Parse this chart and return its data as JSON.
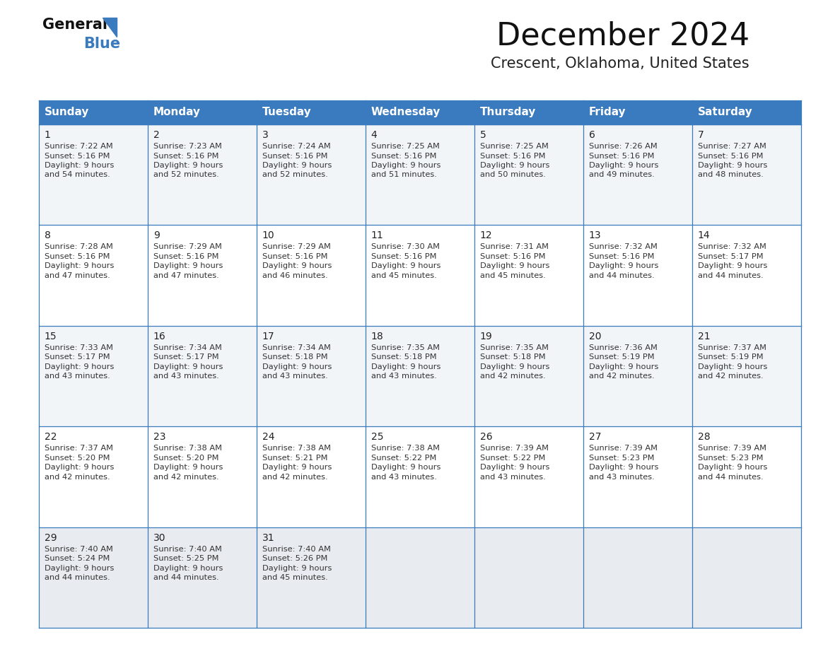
{
  "title": "December 2024",
  "subtitle": "Crescent, Oklahoma, United States",
  "header_bg_color": "#3a7abf",
  "header_text_color": "#ffffff",
  "day_names": [
    "Sunday",
    "Monday",
    "Tuesday",
    "Wednesday",
    "Thursday",
    "Friday",
    "Saturday"
  ],
  "bg_color": "#ffffff",
  "cell_bg_row0": "#f2f5f8",
  "cell_bg_row1": "#ffffff",
  "cell_bg_row2": "#f2f5f8",
  "cell_bg_row3": "#ffffff",
  "cell_bg_row4": "#e8ecf0",
  "grid_color": "#3a7abf",
  "day_number_color": "#222222",
  "cell_text_color": "#333333",
  "title_fontsize": 32,
  "subtitle_fontsize": 15,
  "header_fontsize": 11,
  "day_num_fontsize": 10,
  "cell_fontsize": 8.2,
  "days": [
    {
      "day": 1,
      "col": 0,
      "row": 0,
      "sunrise": "7:22 AM",
      "sunset": "5:16 PM",
      "daylight": "9 hours and 54 minutes."
    },
    {
      "day": 2,
      "col": 1,
      "row": 0,
      "sunrise": "7:23 AM",
      "sunset": "5:16 PM",
      "daylight": "9 hours and 52 minutes."
    },
    {
      "day": 3,
      "col": 2,
      "row": 0,
      "sunrise": "7:24 AM",
      "sunset": "5:16 PM",
      "daylight": "9 hours and 52 minutes."
    },
    {
      "day": 4,
      "col": 3,
      "row": 0,
      "sunrise": "7:25 AM",
      "sunset": "5:16 PM",
      "daylight": "9 hours and 51 minutes."
    },
    {
      "day": 5,
      "col": 4,
      "row": 0,
      "sunrise": "7:25 AM",
      "sunset": "5:16 PM",
      "daylight": "9 hours and 50 minutes."
    },
    {
      "day": 6,
      "col": 5,
      "row": 0,
      "sunrise": "7:26 AM",
      "sunset": "5:16 PM",
      "daylight": "9 hours and 49 minutes."
    },
    {
      "day": 7,
      "col": 6,
      "row": 0,
      "sunrise": "7:27 AM",
      "sunset": "5:16 PM",
      "daylight": "9 hours and 48 minutes."
    },
    {
      "day": 8,
      "col": 0,
      "row": 1,
      "sunrise": "7:28 AM",
      "sunset": "5:16 PM",
      "daylight": "9 hours and 47 minutes."
    },
    {
      "day": 9,
      "col": 1,
      "row": 1,
      "sunrise": "7:29 AM",
      "sunset": "5:16 PM",
      "daylight": "9 hours and 47 minutes."
    },
    {
      "day": 10,
      "col": 2,
      "row": 1,
      "sunrise": "7:29 AM",
      "sunset": "5:16 PM",
      "daylight": "9 hours and 46 minutes."
    },
    {
      "day": 11,
      "col": 3,
      "row": 1,
      "sunrise": "7:30 AM",
      "sunset": "5:16 PM",
      "daylight": "9 hours and 45 minutes."
    },
    {
      "day": 12,
      "col": 4,
      "row": 1,
      "sunrise": "7:31 AM",
      "sunset": "5:16 PM",
      "daylight": "9 hours and 45 minutes."
    },
    {
      "day": 13,
      "col": 5,
      "row": 1,
      "sunrise": "7:32 AM",
      "sunset": "5:16 PM",
      "daylight": "9 hours and 44 minutes."
    },
    {
      "day": 14,
      "col": 6,
      "row": 1,
      "sunrise": "7:32 AM",
      "sunset": "5:17 PM",
      "daylight": "9 hours and 44 minutes."
    },
    {
      "day": 15,
      "col": 0,
      "row": 2,
      "sunrise": "7:33 AM",
      "sunset": "5:17 PM",
      "daylight": "9 hours and 43 minutes."
    },
    {
      "day": 16,
      "col": 1,
      "row": 2,
      "sunrise": "7:34 AM",
      "sunset": "5:17 PM",
      "daylight": "9 hours and 43 minutes."
    },
    {
      "day": 17,
      "col": 2,
      "row": 2,
      "sunrise": "7:34 AM",
      "sunset": "5:18 PM",
      "daylight": "9 hours and 43 minutes."
    },
    {
      "day": 18,
      "col": 3,
      "row": 2,
      "sunrise": "7:35 AM",
      "sunset": "5:18 PM",
      "daylight": "9 hours and 43 minutes."
    },
    {
      "day": 19,
      "col": 4,
      "row": 2,
      "sunrise": "7:35 AM",
      "sunset": "5:18 PM",
      "daylight": "9 hours and 42 minutes."
    },
    {
      "day": 20,
      "col": 5,
      "row": 2,
      "sunrise": "7:36 AM",
      "sunset": "5:19 PM",
      "daylight": "9 hours and 42 minutes."
    },
    {
      "day": 21,
      "col": 6,
      "row": 2,
      "sunrise": "7:37 AM",
      "sunset": "5:19 PM",
      "daylight": "9 hours and 42 minutes."
    },
    {
      "day": 22,
      "col": 0,
      "row": 3,
      "sunrise": "7:37 AM",
      "sunset": "5:20 PM",
      "daylight": "9 hours and 42 minutes."
    },
    {
      "day": 23,
      "col": 1,
      "row": 3,
      "sunrise": "7:38 AM",
      "sunset": "5:20 PM",
      "daylight": "9 hours and 42 minutes."
    },
    {
      "day": 24,
      "col": 2,
      "row": 3,
      "sunrise": "7:38 AM",
      "sunset": "5:21 PM",
      "daylight": "9 hours and 42 minutes."
    },
    {
      "day": 25,
      "col": 3,
      "row": 3,
      "sunrise": "7:38 AM",
      "sunset": "5:22 PM",
      "daylight": "9 hours and 43 minutes."
    },
    {
      "day": 26,
      "col": 4,
      "row": 3,
      "sunrise": "7:39 AM",
      "sunset": "5:22 PM",
      "daylight": "9 hours and 43 minutes."
    },
    {
      "day": 27,
      "col": 5,
      "row": 3,
      "sunrise": "7:39 AM",
      "sunset": "5:23 PM",
      "daylight": "9 hours and 43 minutes."
    },
    {
      "day": 28,
      "col": 6,
      "row": 3,
      "sunrise": "7:39 AM",
      "sunset": "5:23 PM",
      "daylight": "9 hours and 44 minutes."
    },
    {
      "day": 29,
      "col": 0,
      "row": 4,
      "sunrise": "7:40 AM",
      "sunset": "5:24 PM",
      "daylight": "9 hours and 44 minutes."
    },
    {
      "day": 30,
      "col": 1,
      "row": 4,
      "sunrise": "7:40 AM",
      "sunset": "5:25 PM",
      "daylight": "9 hours and 44 minutes."
    },
    {
      "day": 31,
      "col": 2,
      "row": 4,
      "sunrise": "7:40 AM",
      "sunset": "5:26 PM",
      "daylight": "9 hours and 45 minutes."
    }
  ]
}
